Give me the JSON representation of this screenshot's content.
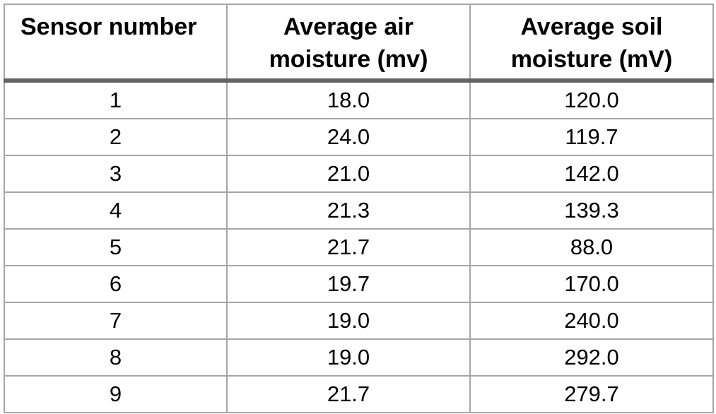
{
  "table": {
    "header": {
      "sensor": "Sensor number",
      "air_line1": "Average air",
      "air_line2": "moisture (mv)",
      "soil_line1": "Average soil",
      "soil_line2": "moisture (mV)"
    },
    "rows": [
      {
        "sensor": "1",
        "air": "18.0",
        "soil": "120.0"
      },
      {
        "sensor": "2",
        "air": "24.0",
        "soil": "119.7"
      },
      {
        "sensor": "3",
        "air": "21.0",
        "soil": "142.0"
      },
      {
        "sensor": "4",
        "air": "21.3",
        "soil": "139.3"
      },
      {
        "sensor": "5",
        "air": "21.7",
        "soil": "88.0"
      },
      {
        "sensor": "6",
        "air": "19.7",
        "soil": "170.0"
      },
      {
        "sensor": "7",
        "air": "19.0",
        "soil": "240.0"
      },
      {
        "sensor": "8",
        "air": "19.0",
        "soil": "292.0"
      },
      {
        "sensor": "9",
        "air": "21.7",
        "soil": "279.7"
      }
    ]
  },
  "colors": {
    "grid_line": "#a6a6a6",
    "header_rule": "#636363",
    "text": "#000000",
    "background": "#ffffff"
  },
  "chart_data": {
    "type": "table",
    "title": "",
    "columns": [
      "Sensor number",
      "Average air moisture (mv)",
      "Average soil moisture (mV)"
    ],
    "rows": [
      [
        1,
        18.0,
        120.0
      ],
      [
        2,
        24.0,
        119.7
      ],
      [
        3,
        21.0,
        142.0
      ],
      [
        4,
        21.3,
        139.3
      ],
      [
        5,
        21.7,
        88.0
      ],
      [
        6,
        19.7,
        170.0
      ],
      [
        7,
        19.0,
        240.0
      ],
      [
        8,
        19.0,
        292.0
      ],
      [
        9,
        21.7,
        279.7
      ]
    ]
  }
}
